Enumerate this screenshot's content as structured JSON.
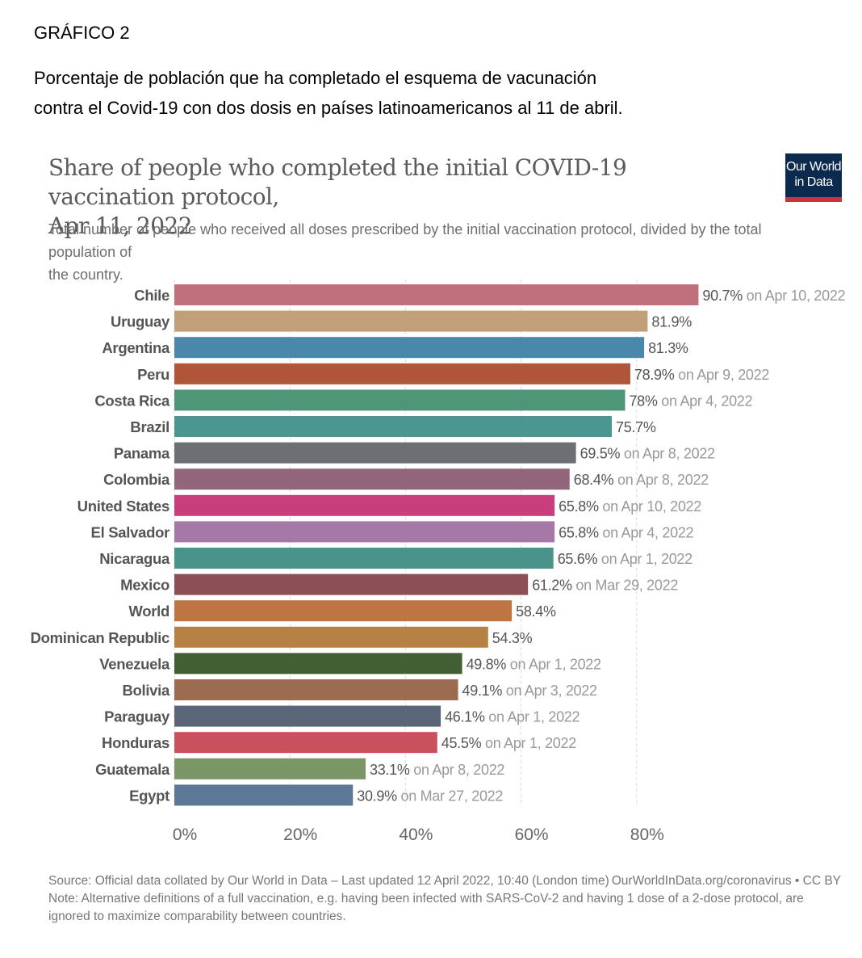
{
  "document": {
    "label": "GRÁFICO 2",
    "title_line1": "Porcentaje de población que ha completado el esquema de vacunación",
    "title_line2": "contra el Covid-19 con dos dosis en países latinoamericanos al 11 de abril."
  },
  "logo": {
    "line1": "Our World",
    "line2": "in Data",
    "bg_color": "#0b2a4e",
    "accent_color": "#c8343a"
  },
  "footer": {
    "source": "Source: Official data collated by Our World in Data – Last updated 12 April 2022, 10:40 (London time)",
    "credit": "OurWorldInData.org/coronavirus • CC BY",
    "note_line1": "Note: Alternative definitions of a full vaccination, e.g. having been infected with SARS-CoV-2 and having 1 dose of a 2-dose protocol, are",
    "note_line2": "ignored to maximize comparability between countries."
  },
  "chart_data": {
    "type": "bar",
    "orientation": "horizontal",
    "title_line1": "Share of people who completed the initial COVID-19 vaccination protocol,",
    "title_line2": "Apr 11, 2022",
    "subtitle_line1": "Total number of people who received all doses prescribed by the initial vaccination protocol, divided by the total population of",
    "subtitle_line2": "the country.",
    "xlim": [
      0,
      100
    ],
    "x_ticks": [
      0,
      20,
      40,
      60,
      80
    ],
    "x_tick_labels": [
      "0%",
      "20%",
      "40%",
      "60%",
      "80%"
    ],
    "grid": "vertical dashed",
    "bars": [
      {
        "category": "Chile",
        "value": 90.7,
        "label": "90.7%",
        "date": " on Apr 10, 2022",
        "color": "#c0707b"
      },
      {
        "category": "Uruguay",
        "value": 81.9,
        "label": "81.9%",
        "date": "",
        "color": "#c19f78"
      },
      {
        "category": "Argentina",
        "value": 81.3,
        "label": "81.3%",
        "date": "",
        "color": "#4a87ab"
      },
      {
        "category": "Peru",
        "value": 78.9,
        "label": "78.9%",
        "date": " on Apr 9, 2022",
        "color": "#b1553a"
      },
      {
        "category": "Costa Rica",
        "value": 78,
        "label": "78%",
        "date": " on Apr 4, 2022",
        "color": "#4f9678"
      },
      {
        "category": "Brazil",
        "value": 75.7,
        "label": "75.7%",
        "date": "",
        "color": "#4c9692"
      },
      {
        "category": "Panama",
        "value": 69.5,
        "label": "69.5%",
        "date": " on Apr 8, 2022",
        "color": "#6d6f72"
      },
      {
        "category": "Colombia",
        "value": 68.4,
        "label": "68.4%",
        "date": " on Apr 8, 2022",
        "color": "#92657a"
      },
      {
        "category": "United States",
        "value": 65.8,
        "label": "65.8%",
        "date": " on Apr 10, 2022",
        "color": "#c83d7c"
      },
      {
        "category": "El Salvador",
        "value": 65.8,
        "label": "65.8%",
        "date": " on Apr 4, 2022",
        "color": "#a578a8"
      },
      {
        "category": "Nicaragua",
        "value": 65.6,
        "label": "65.6%",
        "date": " on Apr 1, 2022",
        "color": "#4a938b"
      },
      {
        "category": "Mexico",
        "value": 61.2,
        "label": "61.2%",
        "date": " on Mar 29, 2022",
        "color": "#8c4f55"
      },
      {
        "category": "World",
        "value": 58.4,
        "label": "58.4%",
        "date": "",
        "color": "#bd7544"
      },
      {
        "category": "Dominican Republic",
        "value": 54.3,
        "label": "54.3%",
        "date": "",
        "color": "#b58145"
      },
      {
        "category": "Venezuela",
        "value": 49.8,
        "label": "49.8%",
        "date": " on Apr 1, 2022",
        "color": "#425f34"
      },
      {
        "category": "Bolivia",
        "value": 49.1,
        "label": "49.1%",
        "date": " on Apr 3, 2022",
        "color": "#9d6b50"
      },
      {
        "category": "Paraguay",
        "value": 46.1,
        "label": "46.1%",
        "date": " on Apr 1, 2022",
        "color": "#5a6577"
      },
      {
        "category": "Honduras",
        "value": 45.5,
        "label": "45.5%",
        "date": " on Apr 1, 2022",
        "color": "#c9515e"
      },
      {
        "category": "Guatemala",
        "value": 33.1,
        "label": "33.1%",
        "date": " on Apr 8, 2022",
        "color": "#7a9566"
      },
      {
        "category": "Egypt",
        "value": 30.9,
        "label": "30.9%",
        "date": " on Mar 27, 2022",
        "color": "#5d7796"
      }
    ]
  }
}
